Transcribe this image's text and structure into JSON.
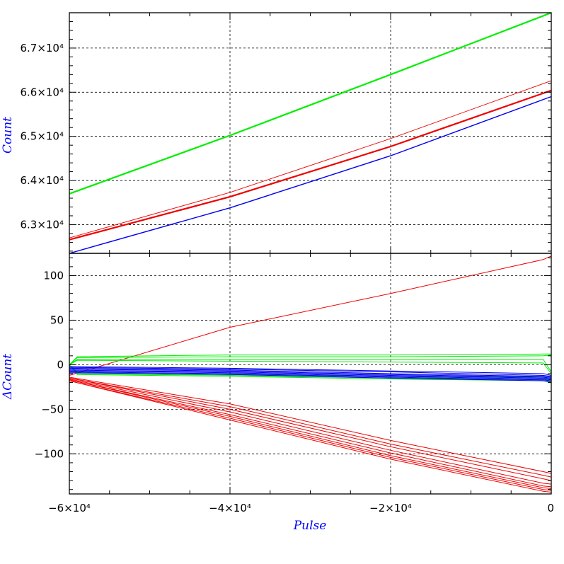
{
  "chart_data": [
    {
      "type": "line",
      "panel": "top",
      "ylabel": "Count",
      "xlim": [
        -60000,
        0
      ],
      "ylim": [
        62350,
        67800
      ],
      "grid": true,
      "yticks": [
        63000,
        64000,
        65000,
        66000,
        67000
      ],
      "ytick_labels": [
        "6.3×10⁴",
        "6.4×10⁴",
        "6.5×10⁴",
        "6.6×10⁴",
        "6.7×10⁴"
      ],
      "xticks": [
        -60000,
        -40000,
        -20000,
        0
      ],
      "series": [
        {
          "color": "#00ee00",
          "width": 2.2,
          "x": [
            -60000,
            -40000,
            -20000,
            0
          ],
          "y": [
            63700,
            65020,
            66400,
            67800
          ]
        },
        {
          "color": "#ee0000",
          "width": 0.9,
          "x": [
            -60000,
            -40000,
            -20000,
            0
          ],
          "y": [
            62700,
            63730,
            64950,
            66260
          ]
        },
        {
          "color": "#ee0000",
          "width": 2.2,
          "x": [
            -60000,
            -40000,
            -20000,
            0
          ],
          "y": [
            62660,
            63630,
            64770,
            66040
          ]
        },
        {
          "color": "#0000ee",
          "width": 1.4,
          "x": [
            -60000,
            -40000,
            -20000,
            0
          ],
          "y": [
            62350,
            63380,
            64560,
            65900
          ]
        }
      ]
    },
    {
      "type": "line",
      "panel": "bottom",
      "ylabel": "ΔCount",
      "xlabel": "Pulse",
      "xlim": [
        -60000,
        0
      ],
      "ylim": [
        -145,
        125
      ],
      "grid": true,
      "yticks": [
        -100,
        -50,
        0,
        50,
        100
      ],
      "ytick_labels": [
        "−100",
        "−50",
        "0",
        "50",
        "100"
      ],
      "xticks": [
        -60000,
        -40000,
        -20000,
        0
      ],
      "xtick_labels": [
        "−6×10⁴",
        "−4×10⁴",
        "−2×10⁴",
        "0"
      ],
      "series": [
        {
          "color": "#ee0000",
          "x": [
            -60000,
            -40000,
            -20000,
            -1000,
            0
          ],
          "y": [
            -12,
            42,
            80,
            118,
            122
          ]
        },
        {
          "color": "#ee0000",
          "x": [
            -60000,
            -40000,
            -20000,
            -1000,
            0
          ],
          "y": [
            -14,
            -44,
            -85,
            -120,
            -122
          ]
        },
        {
          "color": "#ee0000",
          "x": [
            -60000,
            -40000,
            -20000,
            -1000,
            0
          ],
          "y": [
            -15,
            -47,
            -89,
            -124,
            -126
          ]
        },
        {
          "color": "#ee0000",
          "x": [
            -60000,
            -40000,
            -20000,
            -1000,
            0
          ],
          "y": [
            -15,
            -50,
            -92,
            -128,
            -130
          ]
        },
        {
          "color": "#ee0000",
          "x": [
            -60000,
            -40000,
            -20000,
            -1000,
            0
          ],
          "y": [
            -16,
            -53,
            -96,
            -133,
            -134
          ]
        },
        {
          "color": "#ee0000",
          "x": [
            -60000,
            -40000,
            -20000,
            -1000,
            0
          ],
          "y": [
            -17,
            -56,
            -99,
            -136,
            -137
          ]
        },
        {
          "color": "#ee0000",
          "x": [
            -60000,
            -40000,
            -20000,
            -1000,
            0
          ],
          "y": [
            -17,
            -58,
            -102,
            -138,
            -139
          ]
        },
        {
          "color": "#ee0000",
          "x": [
            -60000,
            -40000,
            -20000,
            -1000,
            0
          ],
          "y": [
            -18,
            -60,
            -104,
            -140,
            -141
          ]
        },
        {
          "color": "#ee0000",
          "x": [
            -60000,
            -40000,
            -20000,
            -1000,
            0
          ],
          "y": [
            -18,
            -62,
            -106,
            -142,
            -143
          ]
        },
        {
          "color": "#00ee00",
          "x": [
            -60000,
            -59000,
            -40000,
            -20000,
            -1000,
            0
          ],
          "y": [
            0,
            9,
            11,
            11,
            12,
            12
          ]
        },
        {
          "color": "#00ee00",
          "x": [
            -60000,
            -59000,
            -40000,
            -20000,
            -1000,
            0
          ],
          "y": [
            0,
            8,
            9,
            9,
            10,
            11
          ]
        },
        {
          "color": "#00ee00",
          "x": [
            -60000,
            -59000,
            -40000,
            -20000,
            -1000,
            0
          ],
          "y": [
            0,
            6,
            6,
            6,
            6,
            -8
          ]
        },
        {
          "color": "#00ee00",
          "x": [
            -60000,
            -59000,
            -40000,
            -20000,
            -1000,
            0
          ],
          "y": [
            0,
            5,
            4,
            3,
            2,
            -10
          ]
        },
        {
          "color": "#00ee00",
          "x": [
            -60000,
            -59000,
            -40000,
            -20000,
            -1000,
            0
          ],
          "y": [
            0,
            -9,
            -11,
            -13,
            -14,
            -16
          ]
        },
        {
          "color": "#00ee00",
          "x": [
            -60000,
            -59000,
            -40000,
            -20000,
            -1000,
            0
          ],
          "y": [
            0,
            -10,
            -12,
            -15,
            -17,
            -18
          ]
        },
        {
          "color": "#00ee00",
          "x": [
            -60000,
            -59000,
            -40000,
            -20000,
            -1000,
            0
          ],
          "y": [
            0,
            -11,
            -13,
            -16,
            -18,
            -20
          ]
        },
        {
          "color": "#0000ee",
          "x": [
            -60000,
            -40000,
            -20000,
            -1000,
            0
          ],
          "y": [
            -2,
            -4,
            -7,
            -10,
            -12
          ]
        },
        {
          "color": "#0000ee",
          "x": [
            -60000,
            -40000,
            -20000,
            -1000,
            0
          ],
          "y": [
            -3,
            -5,
            -8,
            -12,
            -13
          ]
        },
        {
          "color": "#0000ee",
          "x": [
            -60000,
            -40000,
            -20000,
            -1000,
            0
          ],
          "y": [
            -4,
            -6,
            -10,
            -13,
            -14
          ]
        },
        {
          "color": "#0000ee",
          "x": [
            -60000,
            -40000,
            -20000,
            -1000,
            0
          ],
          "y": [
            -5,
            -7,
            -11,
            -14,
            -15
          ]
        },
        {
          "color": "#0000ee",
          "x": [
            -60000,
            -40000,
            -20000,
            -1000,
            0
          ],
          "y": [
            -6,
            -8,
            -12,
            -15,
            -16
          ]
        },
        {
          "color": "#0000ee",
          "x": [
            -60000,
            -40000,
            -20000,
            -1000,
            0
          ],
          "y": [
            -7,
            -9,
            -13,
            -16,
            -17
          ]
        },
        {
          "color": "#0000ee",
          "x": [
            -60000,
            -40000,
            -20000,
            -1000,
            0
          ],
          "y": [
            -8,
            -10,
            -14,
            -17,
            -18
          ]
        },
        {
          "color": "#0000ee",
          "x": [
            -60000,
            -40000,
            -20000,
            -1000,
            0
          ],
          "y": [
            -9,
            -11,
            -15,
            -18,
            -19
          ]
        }
      ]
    }
  ]
}
